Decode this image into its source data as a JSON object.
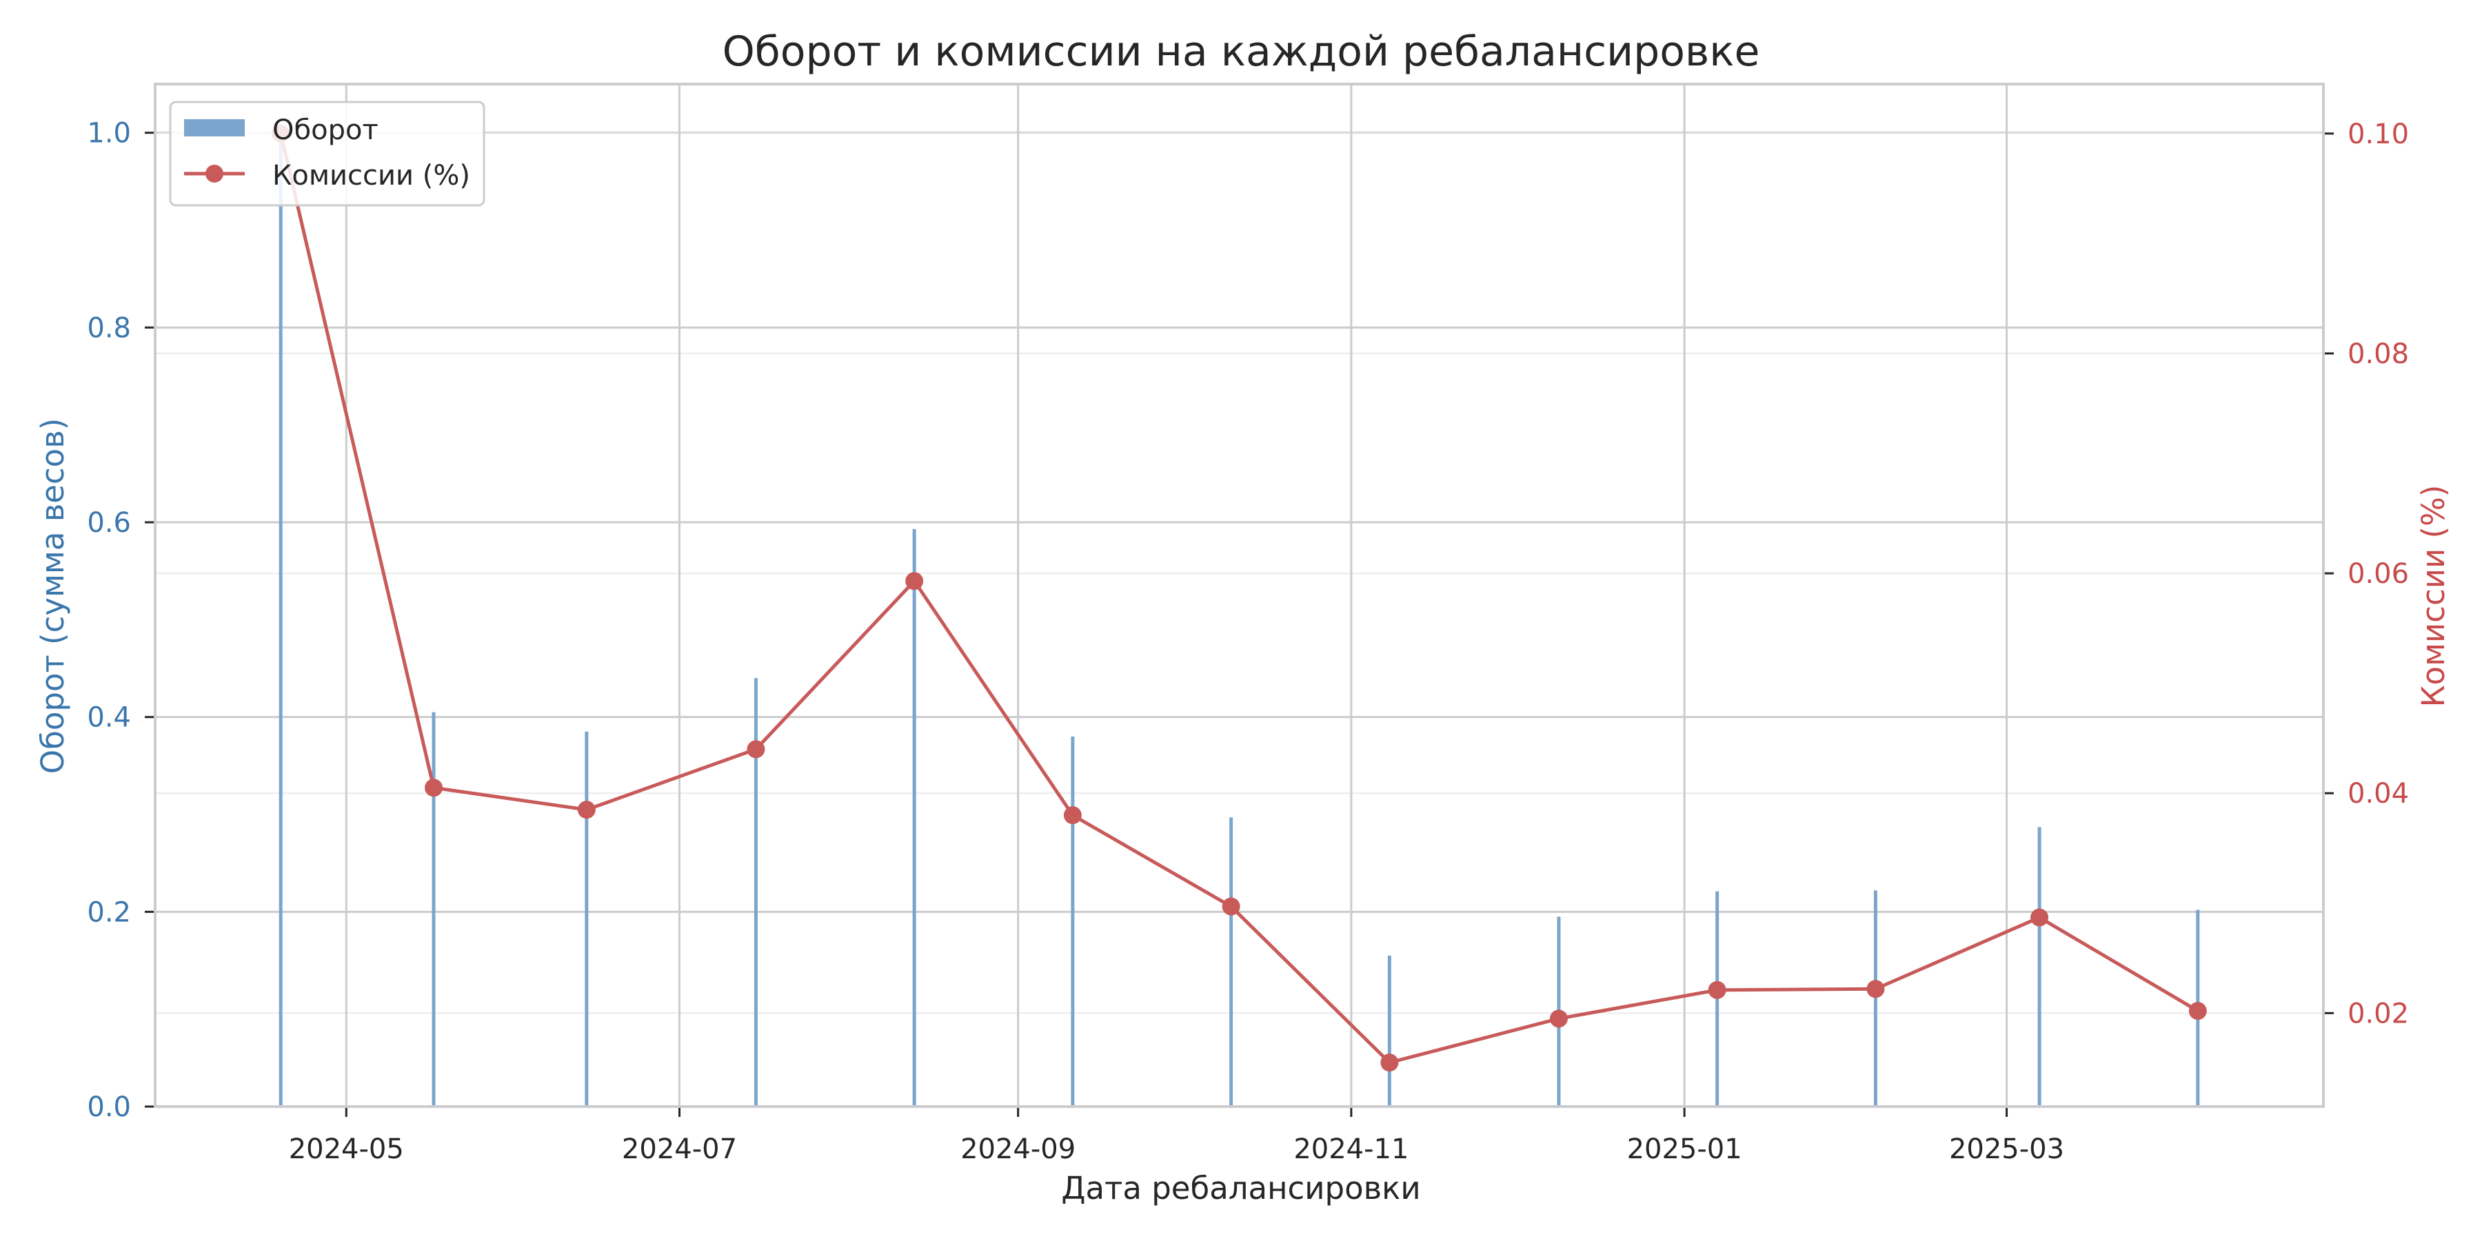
{
  "chart_data": {
    "type": "bar+line",
    "title": "Оборот и комиссии на каждой ребалансировке",
    "xlabel": "Дата ребалансировки",
    "ylabel_left": "Оборот (сумма весов)",
    "ylabel_right": "Комиссии (%)",
    "x_ticks": [
      "2024-05",
      "2024-07",
      "2024-09",
      "2024-11",
      "2025-01",
      "2025-03"
    ],
    "y_left_ticks": [
      "0.0",
      "0.2",
      "0.4",
      "0.6",
      "0.8",
      "1.0"
    ],
    "y_right_ticks": [
      "0.02",
      "0.04",
      "0.06",
      "0.08",
      "0.10"
    ],
    "ylim_left": [
      0,
      1.05
    ],
    "ylim_right": [
      0.0115,
      0.1045
    ],
    "dates": [
      "2024-04-19",
      "2024-05-17",
      "2024-06-14",
      "2024-07-15",
      "2024-08-13",
      "2024-09-11",
      "2024-10-10",
      "2024-11-08",
      "2024-12-09",
      "2025-01-07",
      "2025-02-05",
      "2025-03-07",
      "2025-04-05"
    ],
    "series": [
      {
        "name": "Оборот",
        "kind": "bar",
        "color": "#7ba5cc",
        "values": [
          1.0,
          0.405,
          0.385,
          0.44,
          0.593,
          0.38,
          0.297,
          0.155,
          0.195,
          0.221,
          0.222,
          0.287,
          0.202
        ]
      },
      {
        "name": "Комиссии (%)",
        "kind": "line",
        "color": "#c85a5a",
        "values": [
          0.1,
          0.0405,
          0.0385,
          0.044,
          0.0593,
          0.038,
          0.0297,
          0.0155,
          0.0195,
          0.0221,
          0.0222,
          0.0287,
          0.0202
        ]
      }
    ],
    "legend_position": "top-left",
    "grid": true,
    "colors": {
      "left_axis": "#3a76ab",
      "right_axis": "#c84a4a",
      "grid": "#cccccc",
      "minor_grid": "#ebebeb",
      "spine": "#cccccc",
      "text": "#262626"
    }
  }
}
